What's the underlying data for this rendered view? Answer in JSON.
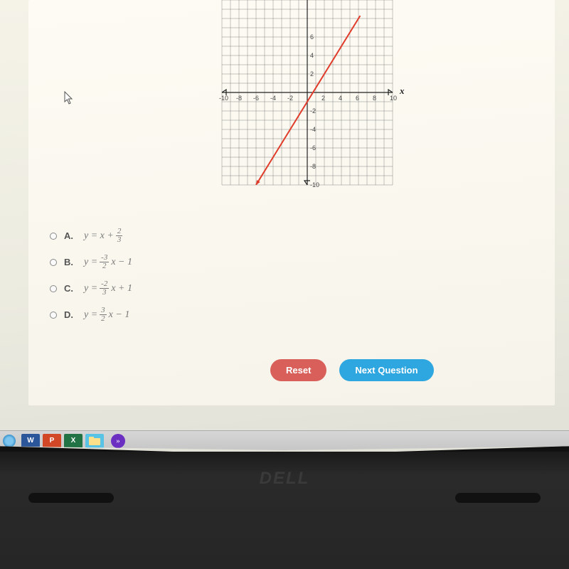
{
  "graph": {
    "xmin": -10,
    "xmax": 10,
    "ymin": -10,
    "ymax": 10,
    "xtick_step": 2,
    "ytick_step": 2,
    "xtick_labels": [
      "-10",
      "-8",
      "-6",
      "-4",
      "-2",
      "",
      "2",
      "4",
      "6",
      "8",
      "10"
    ],
    "ytick_labels_pos": [
      2,
      4,
      6
    ],
    "ytick_labels_neg": [
      -2,
      -4,
      -6,
      -8,
      -10
    ],
    "grid_step": 1,
    "grid_color": "#5a5a5a",
    "axis_color": "#222222",
    "line_color": "#e03b2a",
    "line_width": 2,
    "x_axis_label": "x",
    "line_p1": {
      "x": -6,
      "y": -10
    },
    "line_p2": {
      "x": 6.2,
      "y": 8.3
    }
  },
  "answers": [
    {
      "label": "A.",
      "prefix": "y = x + ",
      "num": "2",
      "den": "3",
      "suffix": ""
    },
    {
      "label": "B.",
      "prefix": "y = ",
      "num": "-3",
      "den": "2",
      "suffix": "x − 1"
    },
    {
      "label": "C.",
      "prefix": "y = ",
      "num": "-2",
      "den": "3",
      "suffix": "x + 1"
    },
    {
      "label": "D.",
      "prefix": "y = ",
      "num": "3",
      "den": "2",
      "suffix": "x − 1"
    }
  ],
  "buttons": {
    "reset": "Reset",
    "next": "Next Question"
  },
  "taskbar": {
    "word": "W",
    "ppt": "P",
    "excel": "X"
  },
  "brand": "DELL"
}
